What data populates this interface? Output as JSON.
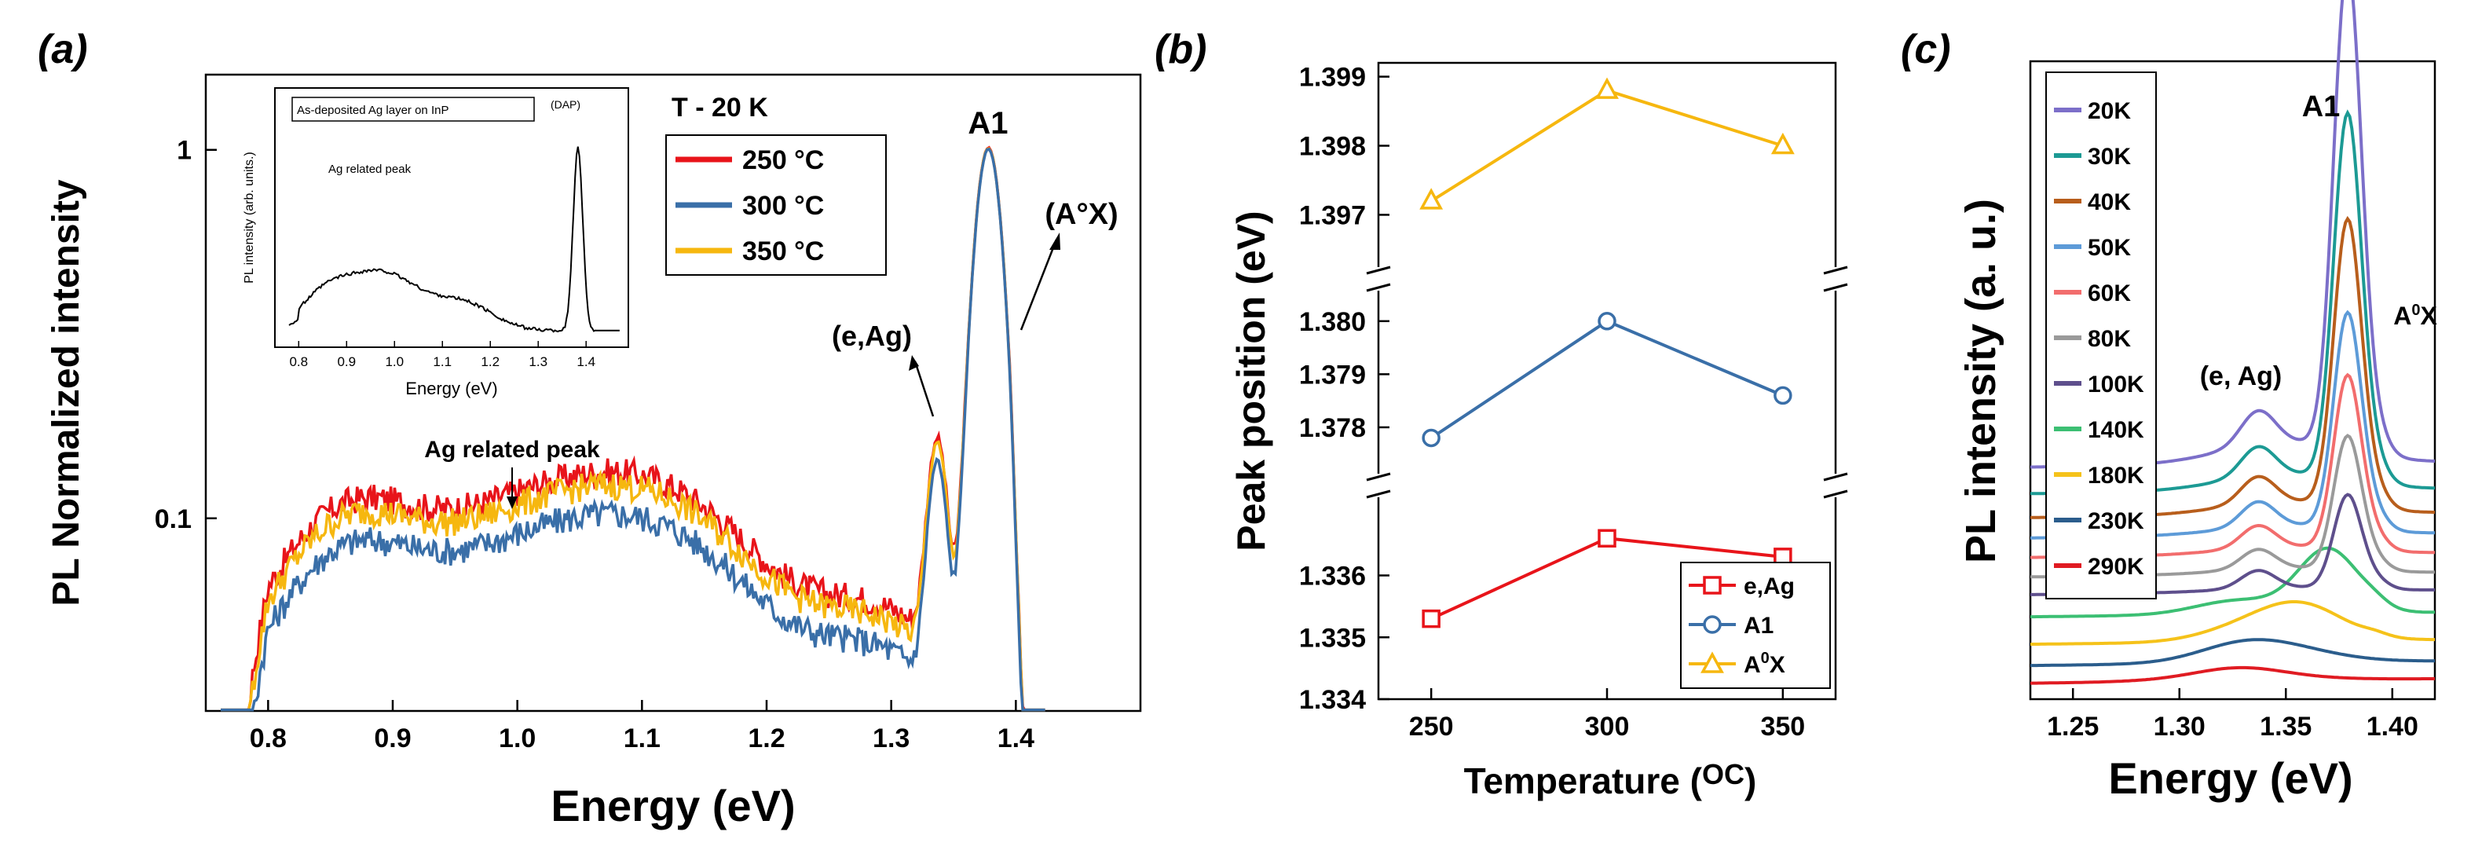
{
  "panel_labels": {
    "a": "(a)",
    "b": "(b)",
    "c": "(c)"
  },
  "chart_data": [
    {
      "panel": "a",
      "type": "line",
      "xlabel": "Energy (eV)",
      "ylabel": "PL Normalized intensity",
      "xlim": [
        0.75,
        1.5
      ],
      "ylim": [
        0.03,
        1.6
      ],
      "yscale": "log",
      "xticks": [
        0.8,
        0.9,
        1.0,
        1.1,
        1.2,
        1.3,
        1.4
      ],
      "xtick_labels": [
        "0.8",
        "0.9",
        "1.0",
        "1.1",
        "1.2",
        "1.3",
        "1.4"
      ],
      "yticks": [
        0.1,
        1
      ],
      "ytick_labels": [
        "0.1",
        "1"
      ],
      "legend_title": "T - 20 K",
      "series": [
        {
          "name": "250 °C",
          "color": "#e8141a",
          "offset": 1.12
        },
        {
          "name": "300 °C",
          "color": "#3a6fa8",
          "offset": 0.86
        },
        {
          "name": "350 °C",
          "color": "#f6b70f",
          "offset": 1.03
        }
      ],
      "annotations": {
        "a1": "A1",
        "aox": "(A°X)",
        "eag": "(e,Ag)",
        "ag_peak": "Ag related peak"
      },
      "inset": {
        "title": "As-deposited Ag layer on InP",
        "xlabel": "Energy (eV)",
        "ylabel": "PL intensity (arb. units.)",
        "xlim": [
          0.77,
          1.48
        ],
        "xticks": [
          0.8,
          0.9,
          1.0,
          1.1,
          1.2,
          1.3,
          1.4
        ],
        "xtick_labels": [
          "0.8",
          "0.9",
          "1.0",
          "1.1",
          "1.2",
          "1.3",
          "1.4"
        ],
        "annotations": {
          "ag_peak": "Ag related peak",
          "dap": "(DAP)"
        }
      }
    },
    {
      "panel": "b",
      "type": "line",
      "xlabel_prefix": "Temperature (",
      "xlabel_unit": "OC",
      "xlabel_suffix": ")",
      "ylabel": "Peak position (eV)",
      "x": [
        250,
        300,
        350
      ],
      "xlim": [
        235,
        365
      ],
      "xtick_labels": [
        "250",
        "300",
        "350"
      ],
      "broken_axis": true,
      "y_segments": [
        {
          "ylim": [
            1.334,
            1.3372
          ],
          "ticks": [
            1.334,
            1.335,
            1.336
          ],
          "tick_labels": [
            "1.334",
            "1.335",
            "1.336"
          ]
        },
        {
          "ylim": [
            1.3772,
            1.3805
          ],
          "ticks": [
            1.378,
            1.379,
            1.38
          ],
          "tick_labels": [
            "1.378",
            "1.379",
            "1.380"
          ]
        },
        {
          "ylim": [
            1.3963,
            1.3992
          ],
          "ticks": [
            1.397,
            1.398,
            1.399
          ],
          "tick_labels": [
            "1.397",
            "1.398",
            "1.399"
          ]
        }
      ],
      "series": [
        {
          "name": "e,Ag",
          "color": "#e8141a",
          "marker": "square",
          "values": [
            1.3353,
            1.3366,
            1.3363
          ],
          "segment": 0
        },
        {
          "name": "A1",
          "color": "#3a6fa8",
          "marker": "circle",
          "values": [
            1.3778,
            1.38,
            1.3786
          ],
          "segment": 1
        },
        {
          "name": "A0X",
          "color": "#f6b70f",
          "marker": "triangle",
          "values": [
            1.3972,
            1.3988,
            1.398
          ],
          "segment": 2
        }
      ],
      "legend_labels": {
        "eag": "e,Ag",
        "a1": "A1",
        "aox_base": "A",
        "aox_sup": "0",
        "aox_tail": "X"
      }
    },
    {
      "panel": "c",
      "type": "line",
      "xlabel": "Energy (eV)",
      "ylabel": "PL intensity (a. u.)",
      "xlim": [
        1.23,
        1.42
      ],
      "xticks": [
        1.25,
        1.3,
        1.35,
        1.4
      ],
      "xtick_labels": [
        "1.25",
        "1.30",
        "1.35",
        "1.40"
      ],
      "ylim": [
        0,
        7.2
      ],
      "series": [
        {
          "name": "20K",
          "color": "#7c6fc9",
          "base": 2.62,
          "a1": 5.45,
          "eag": 0.38,
          "aox": 0.25
        },
        {
          "name": "30K",
          "color": "#1c9a94",
          "base": 2.32,
          "a1": 4.12,
          "eag": 0.33,
          "aox": 0.22
        },
        {
          "name": "40K",
          "color": "#b85e1c",
          "base": 2.05,
          "a1": 3.22,
          "eag": 0.3,
          "aox": 0.2
        },
        {
          "name": "50K",
          "color": "#5d9bd8",
          "base": 1.82,
          "a1": 2.42,
          "eag": 0.28,
          "aox": 0.17
        },
        {
          "name": "60K",
          "color": "#f26d6d",
          "base": 1.6,
          "a1": 1.95,
          "eag": 0.25,
          "aox": 0.15
        },
        {
          "name": "80K",
          "color": "#9a9a9a",
          "base": 1.38,
          "a1": 1.5,
          "eag": 0.22,
          "aox": 0.12
        },
        {
          "name": "100K",
          "color": "#5e4f8c",
          "base": 1.18,
          "a1": 1.05,
          "eag": 0.2,
          "aox": 0.1
        },
        {
          "name": "140K",
          "color": "#3cbf73",
          "base": 0.93,
          "a1": 0.72,
          "eag": 0.16,
          "aox": 0.05
        },
        {
          "name": "180K",
          "color": "#f5c21a",
          "base": 0.62,
          "a1": 0.4,
          "eag": 0.12,
          "aox": 0.03
        },
        {
          "name": "230K",
          "color": "#2b5d8c",
          "base": 0.38,
          "a1": 0.18,
          "eag": 0.1,
          "aox": 0.0
        },
        {
          "name": "290K",
          "color": "#e01b22",
          "base": 0.18,
          "a1": 0.05,
          "eag": 0.1,
          "aox": 0.0
        }
      ],
      "annotations": {
        "a1": "A1",
        "aox_base": "A",
        "aox_sup": "0",
        "aox_tail": "X",
        "eag": "(e, Ag)"
      }
    }
  ]
}
